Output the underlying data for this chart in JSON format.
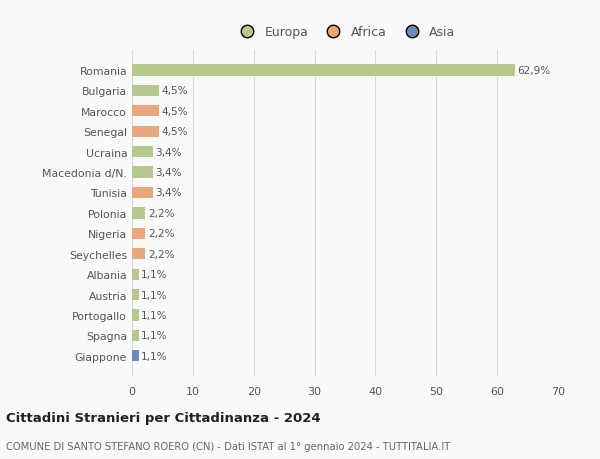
{
  "categories": [
    "Giappone",
    "Spagna",
    "Portogallo",
    "Austria",
    "Albania",
    "Seychelles",
    "Nigeria",
    "Polonia",
    "Tunisia",
    "Macedonia d/N.",
    "Ucraina",
    "Senegal",
    "Marocco",
    "Bulgaria",
    "Romania"
  ],
  "values": [
    1.1,
    1.1,
    1.1,
    1.1,
    1.1,
    2.2,
    2.2,
    2.2,
    3.4,
    3.4,
    3.4,
    4.5,
    4.5,
    4.5,
    62.9
  ],
  "bar_colors": [
    "#6b8cba",
    "#b5c98e",
    "#b5c98e",
    "#b5c98e",
    "#b5c98e",
    "#e8a87c",
    "#e8a87c",
    "#b5c98e",
    "#e8a87c",
    "#b5c98e",
    "#b5c98e",
    "#e8a87c",
    "#e8a87c",
    "#b5c98e",
    "#b5c98e"
  ],
  "labels": [
    "1,1%",
    "1,1%",
    "1,1%",
    "1,1%",
    "1,1%",
    "2,2%",
    "2,2%",
    "2,2%",
    "3,4%",
    "3,4%",
    "3,4%",
    "4,5%",
    "4,5%",
    "4,5%",
    "62,9%"
  ],
  "legend_labels": [
    "Europa",
    "Africa",
    "Asia"
  ],
  "legend_colors": [
    "#b5c98e",
    "#e8a87c",
    "#6b8cba"
  ],
  "title": "Cittadini Stranieri per Cittadinanza - 2024",
  "subtitle": "COMUNE DI SANTO STEFANO ROERO (CN) - Dati ISTAT al 1° gennaio 2024 - TUTTITALIA.IT",
  "xlim": [
    0,
    70
  ],
  "xticks": [
    0,
    10,
    20,
    30,
    40,
    50,
    60,
    70
  ],
  "background_color": "#f9f9f9",
  "grid_color": "#d8d8d8",
  "bar_height": 0.55
}
